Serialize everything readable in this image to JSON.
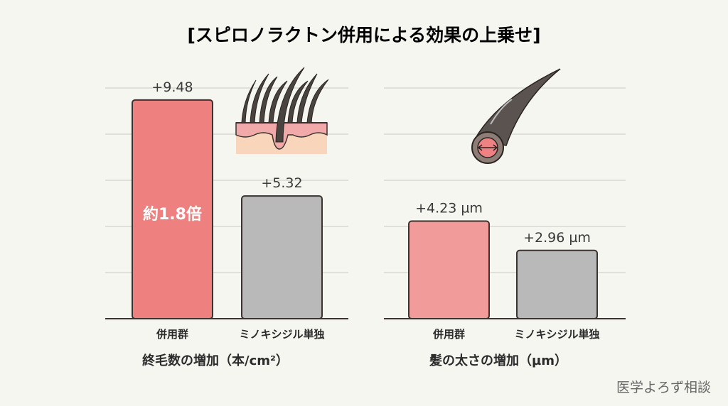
{
  "chart_data": [
    {
      "type": "bar",
      "title": "[スピロノラクトン併用による効果の上乗せ]",
      "categories": [
        "併用群",
        "ミノキシジル単独"
      ],
      "values": [
        9.48,
        5.32
      ],
      "value_labels": [
        "+9.48",
        "+5.32"
      ],
      "annotation": "約1.8倍",
      "xlabel": "終毛数の増加（本/cm²）",
      "ylabel": "",
      "ylim": [
        0,
        10
      ],
      "grid": true,
      "colors": [
        "#ef8080",
        "#b9b9b9"
      ]
    },
    {
      "type": "bar",
      "categories": [
        "併用群",
        "ミノキシジル単独"
      ],
      "values": [
        4.23,
        2.96
      ],
      "value_labels": [
        "+4.23 µm",
        "+2.96 µm"
      ],
      "xlabel": "髪の太さの増加（µm）",
      "ylabel": "",
      "ylim": [
        0,
        10
      ],
      "grid": true,
      "colors": [
        "#f29b9b",
        "#b9b9b9"
      ]
    }
  ],
  "title": "[スピロノラクトン併用による効果の上乗せ]",
  "watermark": "医学よろず相談",
  "icons": [
    "hair-follicle-icon",
    "hair-cross-section-icon"
  ]
}
